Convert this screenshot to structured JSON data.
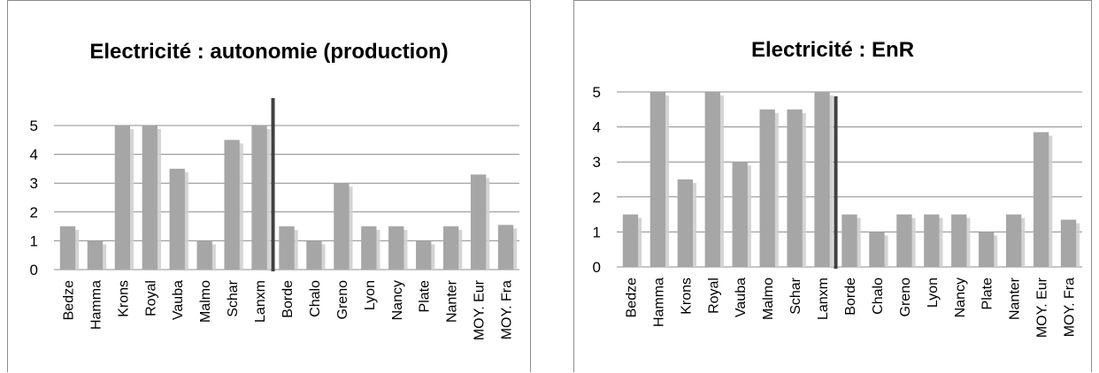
{
  "chart_data": [
    {
      "type": "bar",
      "title": "Electricité : autonomie (production)",
      "categories": [
        "Bedze",
        "Hamma",
        "Krons",
        "Royal",
        "Vauba",
        "Malmo",
        "Schar",
        "Lanxm",
        "Borde",
        "Chalo",
        "Greno",
        "Lyon",
        "Nancy",
        "Plate",
        "Nanter",
        "MOY. Eur",
        "MOY. Fra"
      ],
      "values": [
        1.5,
        1,
        5,
        5,
        3.5,
        1,
        4.5,
        5,
        1.5,
        1,
        3,
        1.5,
        1.5,
        1,
        1.5,
        3.3,
        1.55
      ],
      "ylim": [
        0,
        5
      ],
      "yticks": [
        "0",
        "1",
        "2",
        "3",
        "4",
        "5"
      ],
      "grid": true,
      "separator_after_index": 7,
      "bar_color": "#a6a6a6",
      "shadow_color": "#cfcfcf"
    },
    {
      "type": "bar",
      "title": "Electricité : EnR",
      "categories": [
        "Bedze",
        "Hamma",
        "Krons",
        "Royal",
        "Vauba",
        "Malmo",
        "Schar",
        "Lanxm",
        "Borde",
        "Chalo",
        "Greno",
        "Lyon",
        "Nancy",
        "Plate",
        "Nanter",
        "MOY. Eur",
        "MOY. Fra"
      ],
      "values": [
        1.5,
        5,
        2.5,
        5,
        3,
        4.5,
        4.5,
        5,
        1.5,
        1,
        1.5,
        1.5,
        1.5,
        1,
        1.5,
        3.85,
        1.35
      ],
      "ylim": [
        0,
        5
      ],
      "yticks": [
        "0",
        "1",
        "2",
        "3",
        "4",
        "5"
      ],
      "grid": true,
      "separator_after_index": 7,
      "bar_color": "#a6a6a6",
      "shadow_color": "#cfcfcf"
    }
  ]
}
